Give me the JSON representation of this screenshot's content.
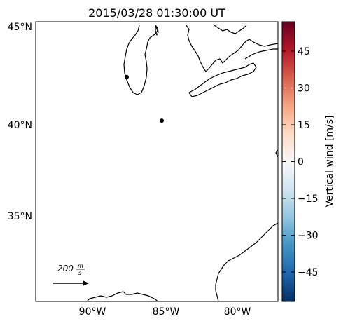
{
  "map": {
    "title": "2015/03/28 01:30:00 UT",
    "lat_labels": [
      "45°N",
      "40°N",
      "35°N"
    ],
    "lon_labels": [
      "90°W",
      "85°W",
      "80°W"
    ],
    "scale_value": "200",
    "scale_unit_num": "m",
    "scale_unit_den": "s",
    "stations": [
      {
        "lat": 42.3,
        "lon": -88.0
      },
      {
        "lat": 40.0,
        "lon": -85.5
      }
    ]
  },
  "colorbar": {
    "label": "Vertical wind [m/s]",
    "ticks": [
      "45",
      "30",
      "15",
      "0",
      "−15",
      "−30",
      "−45"
    ],
    "vmin": -57,
    "vmax": 57,
    "cmap": [
      "#053061",
      "#2166ac",
      "#4393c3",
      "#92c5de",
      "#d1e5f0",
      "#f7f7f7",
      "#fddbc7",
      "#f4a582",
      "#d6604d",
      "#b2182b",
      "#67001f"
    ]
  },
  "colors": {
    "coastline": "#000000",
    "station": "#000000"
  }
}
